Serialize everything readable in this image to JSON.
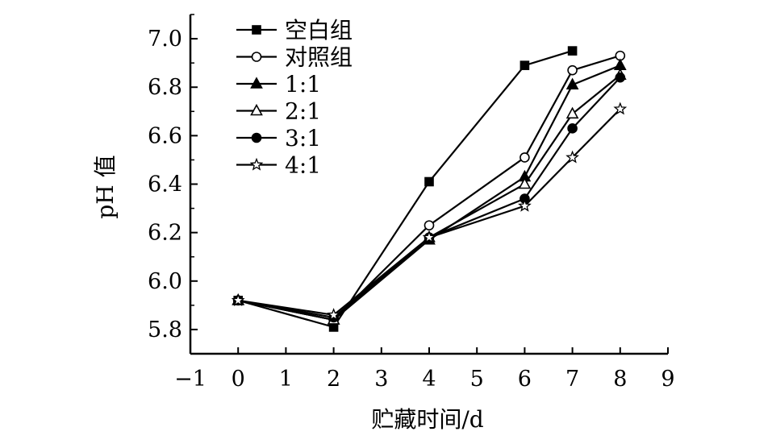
{
  "chart_data": {
    "type": "line",
    "xlabel": "贮藏时间/d",
    "ylabel": "pH 值",
    "xlim": [
      -1,
      9
    ],
    "ylim": [
      5.7,
      7.1
    ],
    "x_ticks": [
      "-1",
      "0",
      "1",
      "2",
      "3",
      "4",
      "5",
      "6",
      "7",
      "8",
      "9"
    ],
    "y_ticks": [
      "5.8",
      "6.0",
      "6.2",
      "6.4",
      "6.6",
      "6.8",
      "7.0"
    ],
    "legend_position": "top-left",
    "grid": false,
    "series": [
      {
        "name": "空白组",
        "marker": "filled-square",
        "points": [
          [
            0,
            5.92
          ],
          [
            2,
            5.81
          ],
          [
            4,
            6.41
          ],
          [
            6,
            6.89
          ],
          [
            7,
            6.95
          ]
        ]
      },
      {
        "name": "对照组",
        "marker": "open-circle",
        "points": [
          [
            0,
            5.92
          ],
          [
            2,
            5.84
          ],
          [
            4,
            6.23
          ],
          [
            6,
            6.51
          ],
          [
            7,
            6.87
          ],
          [
            8,
            6.93
          ]
        ]
      },
      {
        "name": "1:1",
        "marker": "filled-triangle",
        "points": [
          [
            0,
            5.92
          ],
          [
            2,
            5.84
          ],
          [
            4,
            6.17
          ],
          [
            6,
            6.43
          ],
          [
            7,
            6.81
          ],
          [
            8,
            6.89
          ]
        ]
      },
      {
        "name": "2:1",
        "marker": "open-triangle",
        "points": [
          [
            0,
            5.92
          ],
          [
            2,
            5.84
          ],
          [
            4,
            6.18
          ],
          [
            6,
            6.4
          ],
          [
            7,
            6.69
          ],
          [
            8,
            6.85
          ]
        ]
      },
      {
        "name": "3:1",
        "marker": "filled-circle",
        "points": [
          [
            0,
            5.92
          ],
          [
            2,
            5.85
          ],
          [
            4,
            6.18
          ],
          [
            6,
            6.34
          ],
          [
            7,
            6.63
          ],
          [
            8,
            6.84
          ]
        ]
      },
      {
        "name": "4:1",
        "marker": "open-star",
        "points": [
          [
            0,
            5.92
          ],
          [
            2,
            5.86
          ],
          [
            4,
            6.18
          ],
          [
            6,
            6.31
          ],
          [
            7,
            6.51
          ],
          [
            8,
            6.71
          ]
        ]
      }
    ]
  }
}
